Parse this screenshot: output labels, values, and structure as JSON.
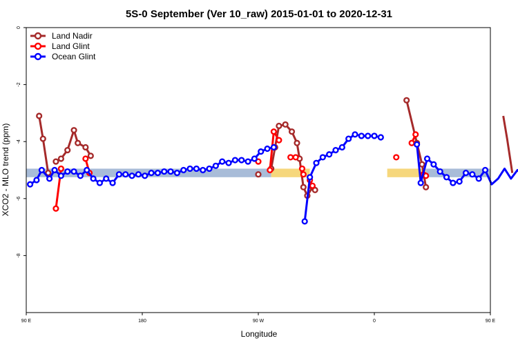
{
  "chart_data": {
    "type": "line",
    "title": "5S-0 September (Ver 10_raw)   2015-01-01 to 2020-12-31",
    "xlabel": "Longitude",
    "ylabel": "XCO2 - MLO trend (ppm)",
    "x_unwrapped_range": [
      90,
      450
    ],
    "ylim": [
      -10,
      0
    ],
    "x_ticks": [
      {
        "value": 90,
        "label": "90 E"
      },
      {
        "value": 180,
        "label": "180"
      },
      {
        "value": 270,
        "label": "90 W"
      },
      {
        "value": 360,
        "label": "0"
      },
      {
        "value": 450,
        "label": "90 E"
      },
      {
        "value": 540,
        "label": "180"
      }
    ],
    "y_ticks": [
      {
        "value": 0,
        "label": "0"
      },
      {
        "value": -2,
        "label": "-2"
      },
      {
        "value": -4,
        "label": "-4"
      },
      {
        "value": -6,
        "label": "-6"
      },
      {
        "value": -8,
        "label": "-8"
      }
    ],
    "legend_position": "top-left",
    "background_band": {
      "y_range": [
        -5.25,
        -4.95
      ],
      "segments": [
        {
          "x_range": [
            90,
            280
          ],
          "color": "#a8bcd8"
        },
        {
          "x_range": [
            280,
            310
          ],
          "color": "#f6d77c"
        },
        {
          "x_range": [
            310,
            370
          ],
          "color": "#ffffff"
        },
        {
          "x_range": [
            370,
            400
          ],
          "color": "#f6d77c"
        },
        {
          "x_range": [
            400,
            540
          ],
          "color": "#a8bcd8"
        }
      ]
    },
    "series": [
      {
        "name": "Land Nadir",
        "color": "#a52a2a",
        "segments": [
          [
            [
              100,
              -3.1
            ],
            [
              103,
              -3.9
            ],
            [
              107,
              -5.1
            ]
          ],
          [
            [
              113,
              -4.7
            ],
            [
              117,
              -4.6
            ],
            [
              122,
              -4.3
            ],
            [
              127,
              -3.6
            ],
            [
              130,
              -4.05
            ],
            [
              136,
              -4.2
            ],
            [
              140,
              -4.5
            ]
          ],
          [
            [
              270,
              -5.15
            ]
          ],
          [
            [
              280,
              -4.95
            ],
            [
              283,
              -4.2
            ],
            [
              286,
              -3.45
            ],
            [
              291,
              -3.4
            ],
            [
              296,
              -3.65
            ],
            [
              300,
              -4.05
            ],
            [
              302,
              -4.6
            ],
            [
              305,
              -5.6
            ],
            [
              308,
              -5.9
            ],
            [
              312,
              -5.6
            ],
            [
              314,
              -5.7
            ]
          ],
          [
            [
              385,
              -2.55
            ],
            [
              393,
              -4.05
            ],
            [
              397,
              -4.8
            ],
            [
              400,
              -5.6
            ]
          ],
          [
            [
              460,
              -3.1
            ],
            [
              463,
              -3.9
            ],
            [
              467,
              -5.1
            ]
          ],
          [
            [
              473,
              -4.7
            ],
            [
              477,
              -4.6
            ],
            [
              482,
              -4.3
            ],
            [
              487,
              -3.6
            ],
            [
              490,
              -4.05
            ],
            [
              496,
              -4.2
            ],
            [
              500,
              -4.5
            ]
          ]
        ]
      },
      {
        "name": "Land Glint",
        "color": "#ff0000",
        "segments": [
          [
            [
              113,
              -6.35
            ],
            [
              117,
              -4.95
            ]
          ],
          [
            [
              136,
              -4.6
            ],
            [
              139,
              -5.1
            ]
          ],
          [
            [
              270,
              -4.7
            ]
          ],
          [
            [
              279,
              -5.0
            ],
            [
              282,
              -3.65
            ],
            [
              286,
              -3.95
            ]
          ],
          [
            [
              295,
              -4.55
            ],
            [
              299,
              -4.55
            ]
          ],
          [
            [
              304,
              -4.95
            ],
            [
              305,
              -5.15
            ]
          ],
          [
            [
              310,
              -5.35
            ],
            [
              312,
              -5.55
            ]
          ],
          [
            [
              377,
              -4.55
            ]
          ],
          [
            [
              389,
              -4.05
            ],
            [
              392,
              -3.75
            ]
          ],
          [
            [
              398,
              -5.15
            ],
            [
              400,
              -5.2
            ]
          ],
          [
            [
              473,
              -6.35
            ],
            [
              477,
              -4.95
            ]
          ],
          [
            [
              496,
              -4.6
            ],
            [
              499,
              -5.1
            ]
          ]
        ]
      },
      {
        "name": "Ocean Glint",
        "color": "#0000ff",
        "segments": [
          [
            [
              93,
              -5.5
            ],
            [
              98,
              -5.35
            ],
            [
              102,
              -5.0
            ],
            [
              108,
              -5.3
            ],
            [
              112,
              -5.0
            ],
            [
              117,
              -5.2
            ],
            [
              122,
              -5.05
            ],
            [
              127,
              -5.05
            ],
            [
              132,
              -5.2
            ],
            [
              137,
              -5.0
            ],
            [
              142,
              -5.3
            ],
            [
              147,
              -5.45
            ],
            [
              152,
              -5.3
            ],
            [
              157,
              -5.45
            ],
            [
              162,
              -5.15
            ],
            [
              167,
              -5.15
            ],
            [
              172,
              -5.2
            ],
            [
              177,
              -5.15
            ],
            [
              182,
              -5.2
            ],
            [
              187,
              -5.1
            ],
            [
              192,
              -5.1
            ],
            [
              197,
              -5.05
            ],
            [
              202,
              -5.05
            ],
            [
              207,
              -5.1
            ],
            [
              212,
              -5.0
            ],
            [
              217,
              -4.95
            ],
            [
              222,
              -4.95
            ],
            [
              227,
              -5.0
            ],
            [
              232,
              -4.95
            ],
            [
              237,
              -4.85
            ],
            [
              242,
              -4.7
            ],
            [
              247,
              -4.75
            ],
            [
              252,
              -4.65
            ],
            [
              257,
              -4.65
            ],
            [
              262,
              -4.7
            ],
            [
              267,
              -4.6
            ],
            [
              272,
              -4.35
            ],
            [
              277,
              -4.25
            ],
            [
              282,
              -4.2
            ]
          ],
          [
            [
              306,
              -6.8
            ],
            [
              310,
              -5.25
            ],
            [
              315,
              -4.75
            ],
            [
              320,
              -4.55
            ],
            [
              325,
              -4.45
            ],
            [
              330,
              -4.3
            ],
            [
              335,
              -4.2
            ],
            [
              340,
              -3.9
            ],
            [
              345,
              -3.75
            ],
            [
              350,
              -3.8
            ],
            [
              355,
              -3.8
            ],
            [
              360,
              -3.8
            ],
            [
              365,
              -3.85
            ]
          ],
          [
            [
              393,
              -4.1
            ],
            [
              396,
              -5.45
            ],
            [
              401,
              -4.6
            ],
            [
              406,
              -4.8
            ],
            [
              411,
              -5.05
            ],
            [
              416,
              -5.25
            ],
            [
              421,
              -5.45
            ],
            [
              426,
              -5.4
            ],
            [
              431,
              -5.1
            ],
            [
              436,
              -5.15
            ],
            [
              441,
              -5.3
            ],
            [
              446,
              -5.0
            ],
            [
              451,
              -5.5
            ],
            [
              456,
              -5.3
            ],
            [
              461,
              -4.95
            ],
            [
              466,
              -5.3
            ],
            [
              471,
              -5.0
            ],
            [
              476,
              -5.2
            ],
            [
              481,
              -5.0
            ],
            [
              486,
              -5.1
            ],
            [
              491,
              -5.2
            ],
            [
              496,
              -5.0
            ],
            [
              501,
              -5.3
            ],
            [
              506,
              -5.45
            ],
            [
              511,
              -5.25
            ],
            [
              516,
              -5.45
            ],
            [
              521,
              -5.15
            ],
            [
              526,
              -5.15
            ],
            [
              531,
              -5.2
            ],
            [
              536,
              -5.1
            ]
          ]
        ]
      }
    ]
  }
}
